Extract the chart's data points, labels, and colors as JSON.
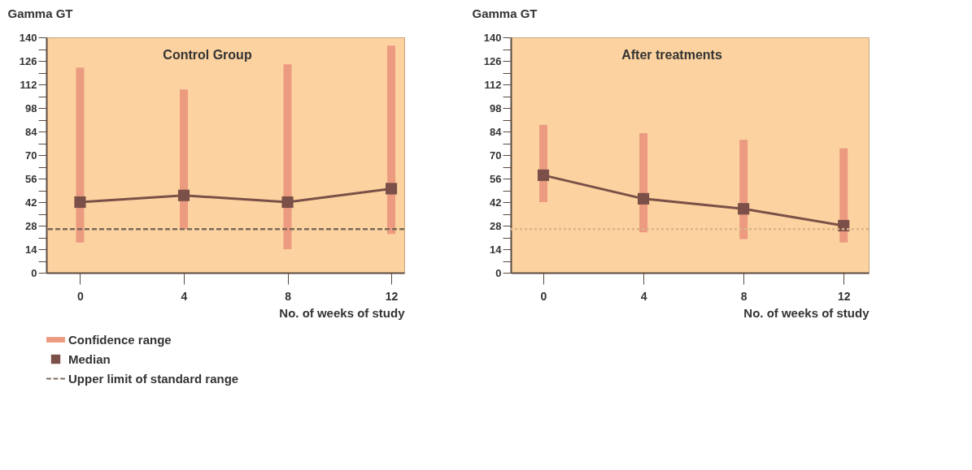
{
  "chart_data": [
    {
      "type": "line",
      "title": "Control Group",
      "ylabel": "Gamma GT",
      "xlabel": "No. of weeks of study",
      "x": [
        0,
        4,
        8,
        12
      ],
      "xlim": [
        -1.3,
        12.5
      ],
      "xticks": [
        0,
        4,
        8,
        12
      ],
      "ylim": [
        0,
        140
      ],
      "yticks": [
        0,
        {
          "value": 7,
          "label": null
        },
        14,
        {
          "value": 21,
          "label": null
        },
        28,
        {
          "value": 35,
          "label": null
        },
        42,
        {
          "value": 49,
          "label": null
        },
        56,
        {
          "value": 63,
          "label": null
        },
        70,
        {
          "value": 77,
          "label": null
        },
        84,
        {
          "value": 91,
          "label": null
        },
        98,
        {
          "value": 105,
          "label": null
        },
        112,
        {
          "value": 119,
          "label": null
        },
        126,
        {
          "value": 133,
          "label": null
        },
        140
      ],
      "marker": "square",
      "line_style": "solid",
      "legend": "bottom",
      "series": [
        {
          "name": "Confidence range",
          "type": "bar",
          "color": "#ec9a80",
          "base": [
            18,
            26,
            14,
            23
          ],
          "values": [
            104,
            83,
            110,
            112
          ]
        },
        {
          "name": "Median",
          "color": "#7b5048",
          "values": [
            42,
            46,
            42,
            50
          ]
        }
      ],
      "ref_lines": [
        {
          "axis": "y",
          "value": 26,
          "label": "Upper limit of standard range",
          "color": "#7a6a5a",
          "line_style": "dashed"
        }
      ]
    },
    {
      "type": "line",
      "title": "After treatments",
      "ylabel": "Gamma GT",
      "xlabel": "No. of weeks of study",
      "x": [
        0,
        4,
        8,
        12
      ],
      "xlim": [
        -1.3,
        13
      ],
      "xticks": [
        0,
        4,
        8,
        12
      ],
      "ylim": [
        0,
        140
      ],
      "yticks": [
        0,
        {
          "value": 7,
          "label": null
        },
        14,
        {
          "value": 21,
          "label": null
        },
        28,
        {
          "value": 35,
          "label": null
        },
        42,
        {
          "value": 49,
          "label": null
        },
        56,
        {
          "value": 63,
          "label": null
        },
        70,
        {
          "value": 77,
          "label": null
        },
        84,
        {
          "value": 91,
          "label": null
        },
        98,
        {
          "value": 105,
          "label": null
        },
        112,
        {
          "value": 119,
          "label": null
        },
        126,
        {
          "value": 133,
          "label": null
        },
        140
      ],
      "marker": "square",
      "line_style": "solid",
      "series": [
        {
          "type": "bar",
          "color": "#ec9a80",
          "base": [
            42,
            24,
            20,
            18
          ],
          "values": [
            46,
            59,
            59,
            56
          ]
        },
        {
          "color": "#7b5048",
          "values": [
            58,
            44,
            38,
            28
          ]
        }
      ],
      "ref_lines": [
        {
          "axis": "y",
          "value": 26,
          "color": "#d8b48a",
          "line_style": "dotted"
        }
      ]
    }
  ]
}
